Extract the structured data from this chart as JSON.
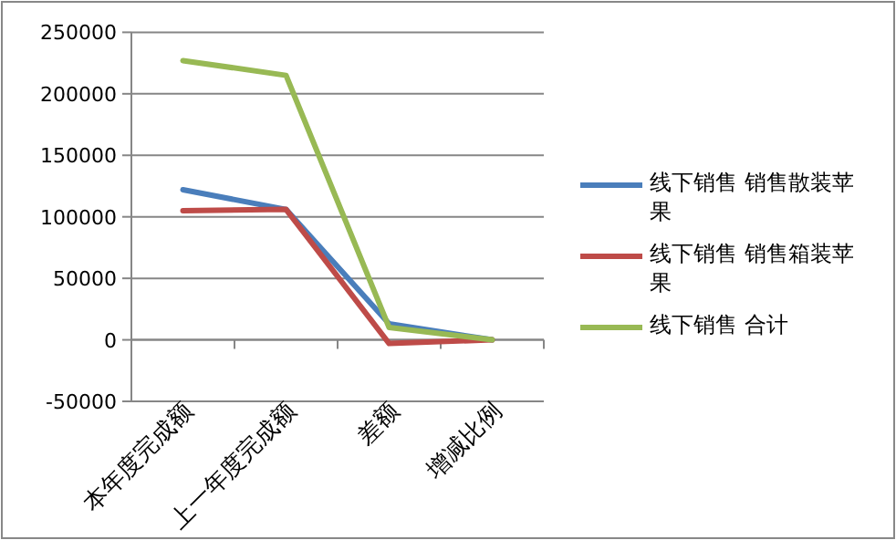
{
  "chart_data": {
    "type": "line",
    "categories": [
      "本年度完成额",
      "上一年度完成额",
      "差额",
      "增减比例"
    ],
    "series": [
      {
        "name": "线下销售 销售散装苹果",
        "color": "#4a7ebb",
        "values": [
          122000,
          106000,
          13000,
          0
        ]
      },
      {
        "name": "线下销售 销售箱装苹果",
        "color": "#be4b48",
        "values": [
          105000,
          106000,
          -3000,
          0
        ]
      },
      {
        "name": "线下销售 合计",
        "color": "#98b954",
        "values": [
          227000,
          215000,
          10000,
          0
        ]
      }
    ],
    "ylim": [
      -50000,
      250000
    ],
    "yticks": [
      -50000,
      0,
      50000,
      100000,
      150000,
      200000,
      250000
    ],
    "grid": "y",
    "legend": "right",
    "marker": "none",
    "line_style": "solid"
  }
}
